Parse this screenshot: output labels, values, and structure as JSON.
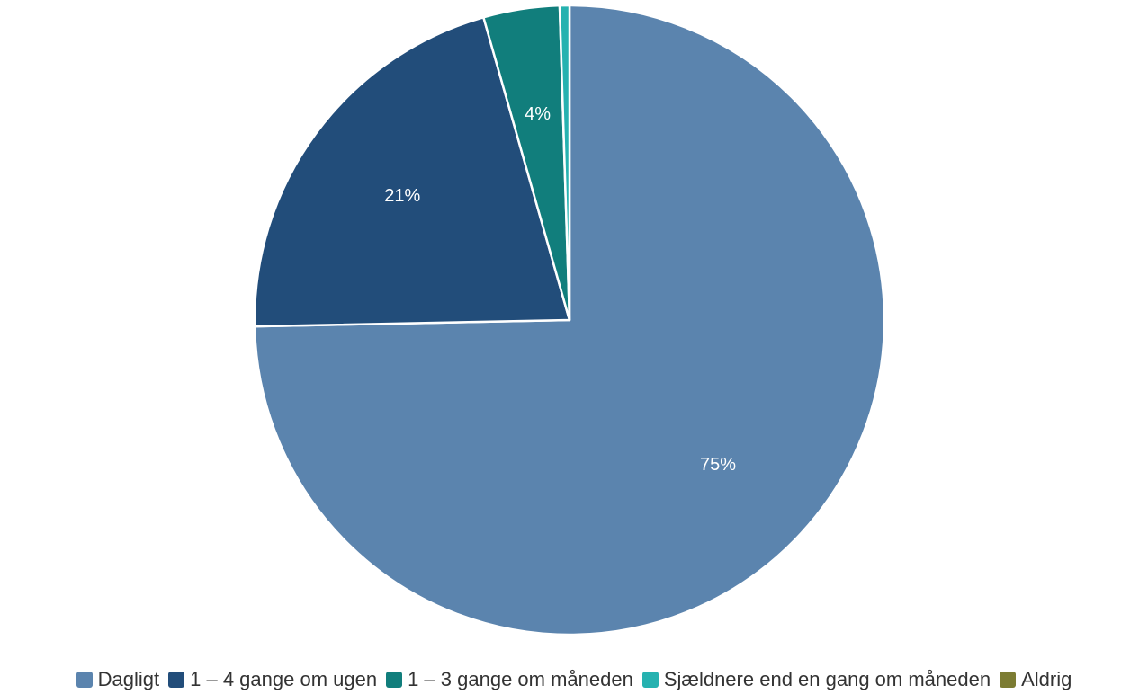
{
  "chart_data": {
    "type": "pie",
    "title": "",
    "categories": [
      "Dagligt",
      "1 – 4 gange om ugen",
      "1 – 3 gange om måneden",
      "Sjældnere end en gang om måneden",
      "Aldrig"
    ],
    "values": [
      74.6,
      20.9,
      3.9,
      0.5,
      0
    ],
    "labels": [
      "75%",
      "21%",
      "4%",
      "",
      ""
    ],
    "colors": [
      "#5b84ae",
      "#224d7a",
      "#117e7c",
      "#26b2b0",
      "#7c7c33"
    ],
    "legend_position": "bottom",
    "start_angle": "12 o'clock",
    "direction": "clockwise"
  }
}
